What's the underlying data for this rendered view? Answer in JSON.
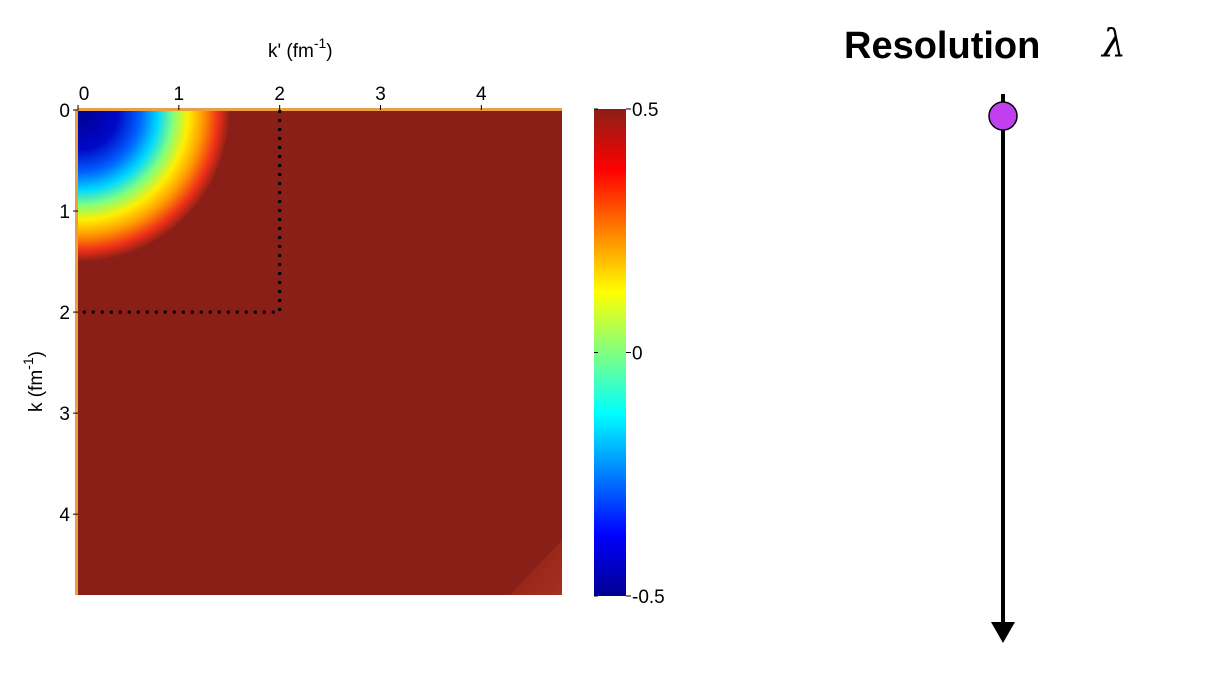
{
  "chart_data": {
    "type": "heatmap",
    "title": "",
    "xlabel": "k' (fm",
    "xlabel_sup": "-1",
    "xlabel_close": ")",
    "ylabel": "k (fm",
    "ylabel_sup": "-1",
    "ylabel_close": ")",
    "x_axis_position": "top",
    "xlim": [
      0,
      4.8
    ],
    "ylim": [
      0,
      4.8
    ],
    "x_ticks": [
      "0",
      "1",
      "2",
      "3",
      "4"
    ],
    "x_tick_values": [
      0,
      1,
      2,
      3,
      4
    ],
    "y_ticks": [
      "0",
      "1",
      "2",
      "3",
      "4"
    ],
    "y_tick_values": [
      0,
      1,
      2,
      3,
      4
    ],
    "colorbar": {
      "range": [
        -0.5,
        0.5
      ],
      "ticks": [
        "0.5",
        "0",
        "-0.5"
      ],
      "tick_values": [
        0.5,
        0,
        -0.5
      ],
      "colormap": "jet"
    },
    "field": {
      "description_values": {
        "background": 0.5,
        "minimum_at_origin": -0.5
      },
      "negative_region_radius_k": 1.5
    },
    "guide_box": {
      "style": "dotted",
      "kprime_max": 2,
      "k_max": 2
    }
  },
  "resolution_panel": {
    "title": "Resolution",
    "symbol": "λ",
    "marker_color": "#c040f0",
    "arrow_direction": "down"
  }
}
